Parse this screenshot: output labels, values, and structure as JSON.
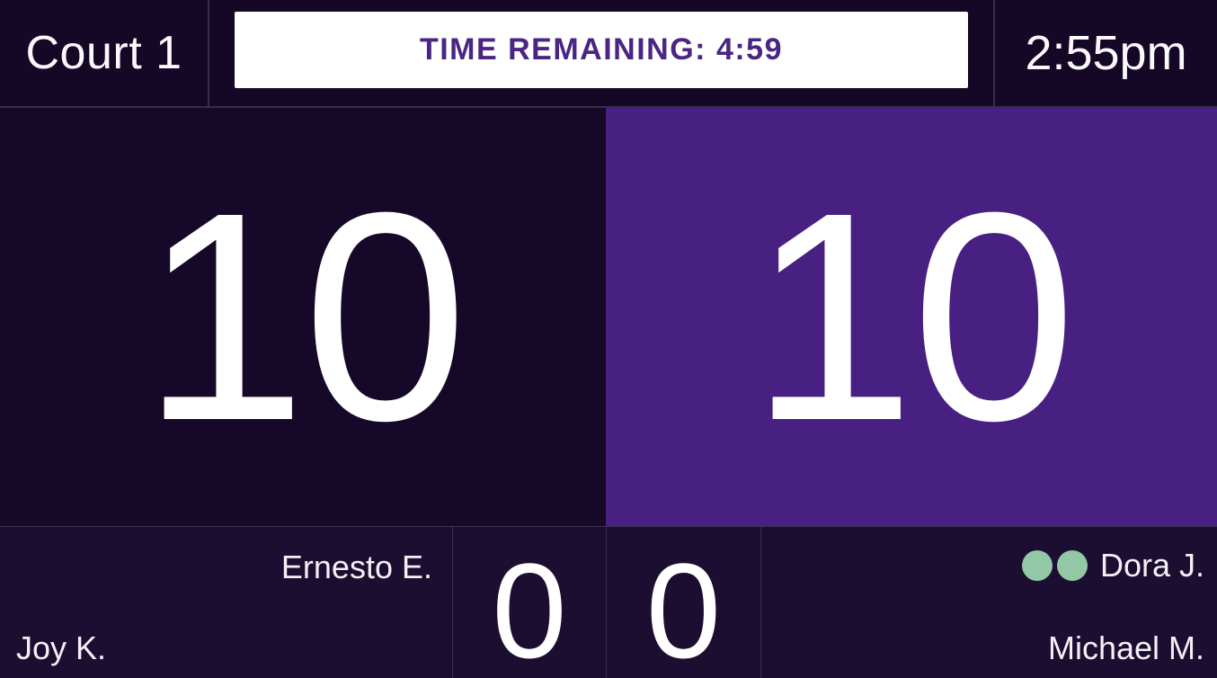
{
  "header": {
    "court": "Court 1",
    "timer": "TIME REMAINING: 4:59",
    "clock": "2:55pm"
  },
  "left_team": {
    "score": "10",
    "game_score": "0",
    "player_top": "Ernesto E.",
    "player_bottom": "Joy K."
  },
  "right_team": {
    "score": "10",
    "game_score": "0",
    "player_top": "Dora J.",
    "player_bottom": "Michael M.",
    "serve_indicator_count": 2
  },
  "colors": {
    "top_bar_bg": "#150726",
    "panel_dark": "#160828",
    "panel_purple": "#472081",
    "bottom_bar_bg": "#1c0e30",
    "timer_box_bg": "#ffffff",
    "timer_text": "#4a2583",
    "score_text": "#ffffff",
    "serve_dot": "#92c8a6",
    "divider": "#372d49"
  }
}
